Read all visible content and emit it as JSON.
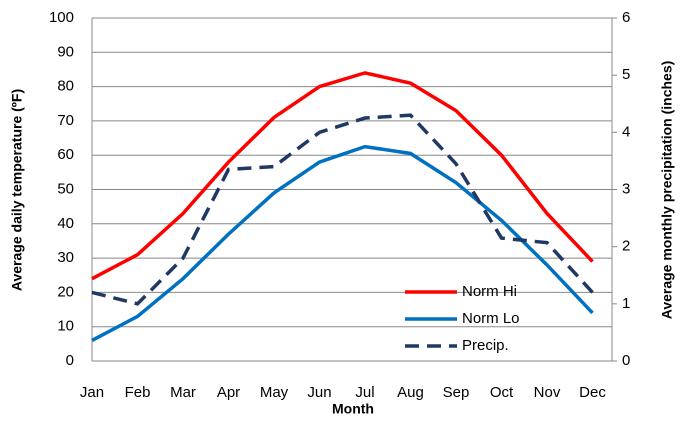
{
  "chart_data": {
    "type": "line",
    "x_label": "Month",
    "y_label": "Average daily temperature (ºF)",
    "y2_label": "Average monthly precipitation (inches)",
    "categories": [
      "Jan",
      "Feb",
      "Mar",
      "Apr",
      "May",
      "Jun",
      "Jul",
      "Aug",
      "Sep",
      "Oct",
      "Nov",
      "Dec"
    ],
    "series": [
      {
        "name": "Norm Hi",
        "color": "#ff0000",
        "dash": false,
        "values": [
          24,
          31,
          43,
          58,
          71,
          80,
          84,
          81,
          73,
          60,
          43,
          29
        ]
      },
      {
        "name": "Norm Lo",
        "color": "#0070c0",
        "dash": false,
        "values": [
          6,
          13,
          24,
          37,
          49,
          58,
          62.5,
          60.5,
          52,
          41,
          28,
          14
        ]
      },
      {
        "name": "Precip.",
        "color": "#1f3864",
        "dash": true,
        "axis": "y2",
        "values": [
          1.2,
          1.0,
          1.8,
          3.35,
          3.4,
          4.0,
          4.25,
          4.3,
          3.45,
          2.15,
          2.07,
          1.2
        ]
      }
    ],
    "ylim": [
      0,
      100
    ],
    "yticks": [
      0,
      10,
      20,
      30,
      40,
      50,
      60,
      70,
      80,
      90,
      100
    ],
    "y2lim": [
      0,
      6
    ],
    "y2ticks": [
      0,
      1,
      2,
      3,
      4,
      5,
      6
    ],
    "grid": true,
    "legend": "lower-right"
  }
}
